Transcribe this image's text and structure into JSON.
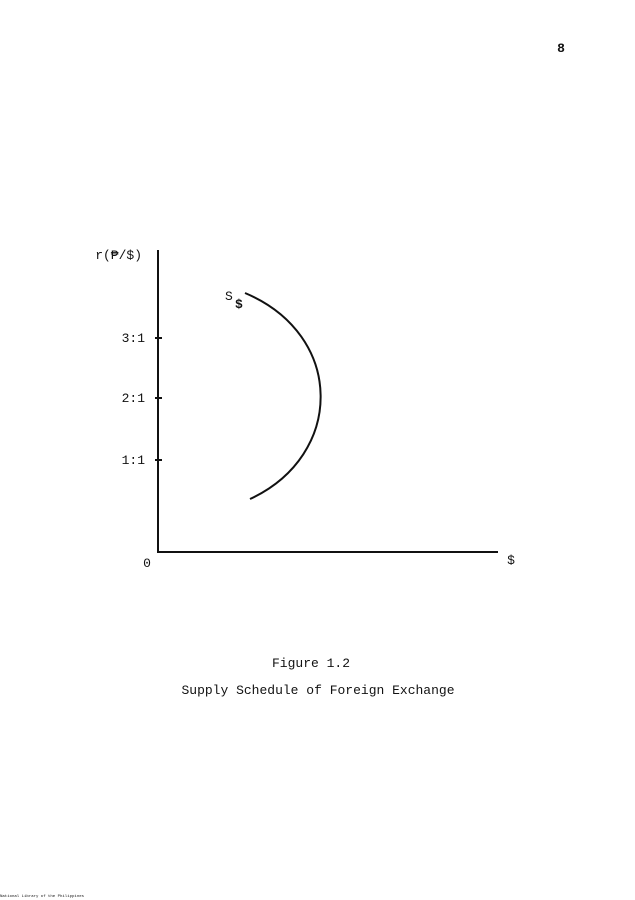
{
  "page_number": "8",
  "figure": {
    "y_axis_label": "r(₱/$)",
    "y_tick_labels": [
      "3:1",
      "2:1",
      "1:1"
    ],
    "origin_label": "0",
    "x_axis_label": "$",
    "curve_label": {
      "main": "S",
      "subscript": "$"
    },
    "caption": {
      "number": "Figure 1.2",
      "title": "Supply Schedule of Foreign Exchange"
    }
  },
  "footer": "National Library of the Philippines"
}
